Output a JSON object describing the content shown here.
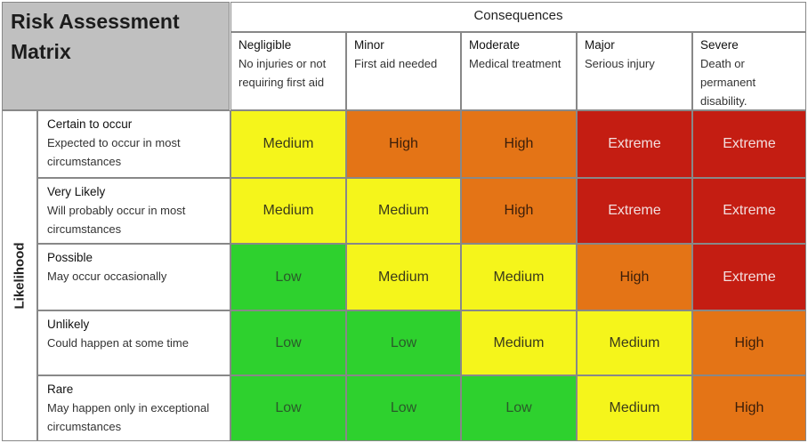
{
  "title": "Risk Assessment Matrix",
  "consequences_label": "Consequences",
  "likelihood_label": "Likelihood",
  "columns": [
    {
      "name": "Negligible",
      "desc": "No injuries or not requiring first aid"
    },
    {
      "name": "Minor",
      "desc": "First aid needed"
    },
    {
      "name": "Moderate",
      "desc": "Medical treatment"
    },
    {
      "name": "Major",
      "desc": "Serious injury"
    },
    {
      "name": "Severe",
      "desc": "Death or permanent disability."
    }
  ],
  "rows": [
    {
      "name": "Certain to occur",
      "desc": "Expected to occur in most circumstances",
      "cells": [
        "Medium",
        "High",
        "High",
        "Extreme",
        "Extreme"
      ]
    },
    {
      "name": "Very Likely",
      "desc": "Will probably occur in most circumstances",
      "cells": [
        "Medium",
        "Medium",
        "High",
        "Extreme",
        "Extreme"
      ]
    },
    {
      "name": "Possible",
      "desc": "May occur occasionally",
      "cells": [
        "Low",
        "Medium",
        "Medium",
        "High",
        "Extreme"
      ]
    },
    {
      "name": "Unlikely",
      "desc": "Could happen at some time",
      "cells": [
        "Low",
        "Low",
        "Medium",
        "Medium",
        "High"
      ]
    },
    {
      "name": "Rare",
      "desc": "May happen only in exceptional circumstances",
      "cells": [
        "Low",
        "Low",
        "Low",
        "Medium",
        "High"
      ]
    }
  ],
  "level_colors": {
    "Low": "#2ed12e",
    "Medium": "#f5f51b",
    "High": "#e47416",
    "Extreme": "#c41d12"
  }
}
